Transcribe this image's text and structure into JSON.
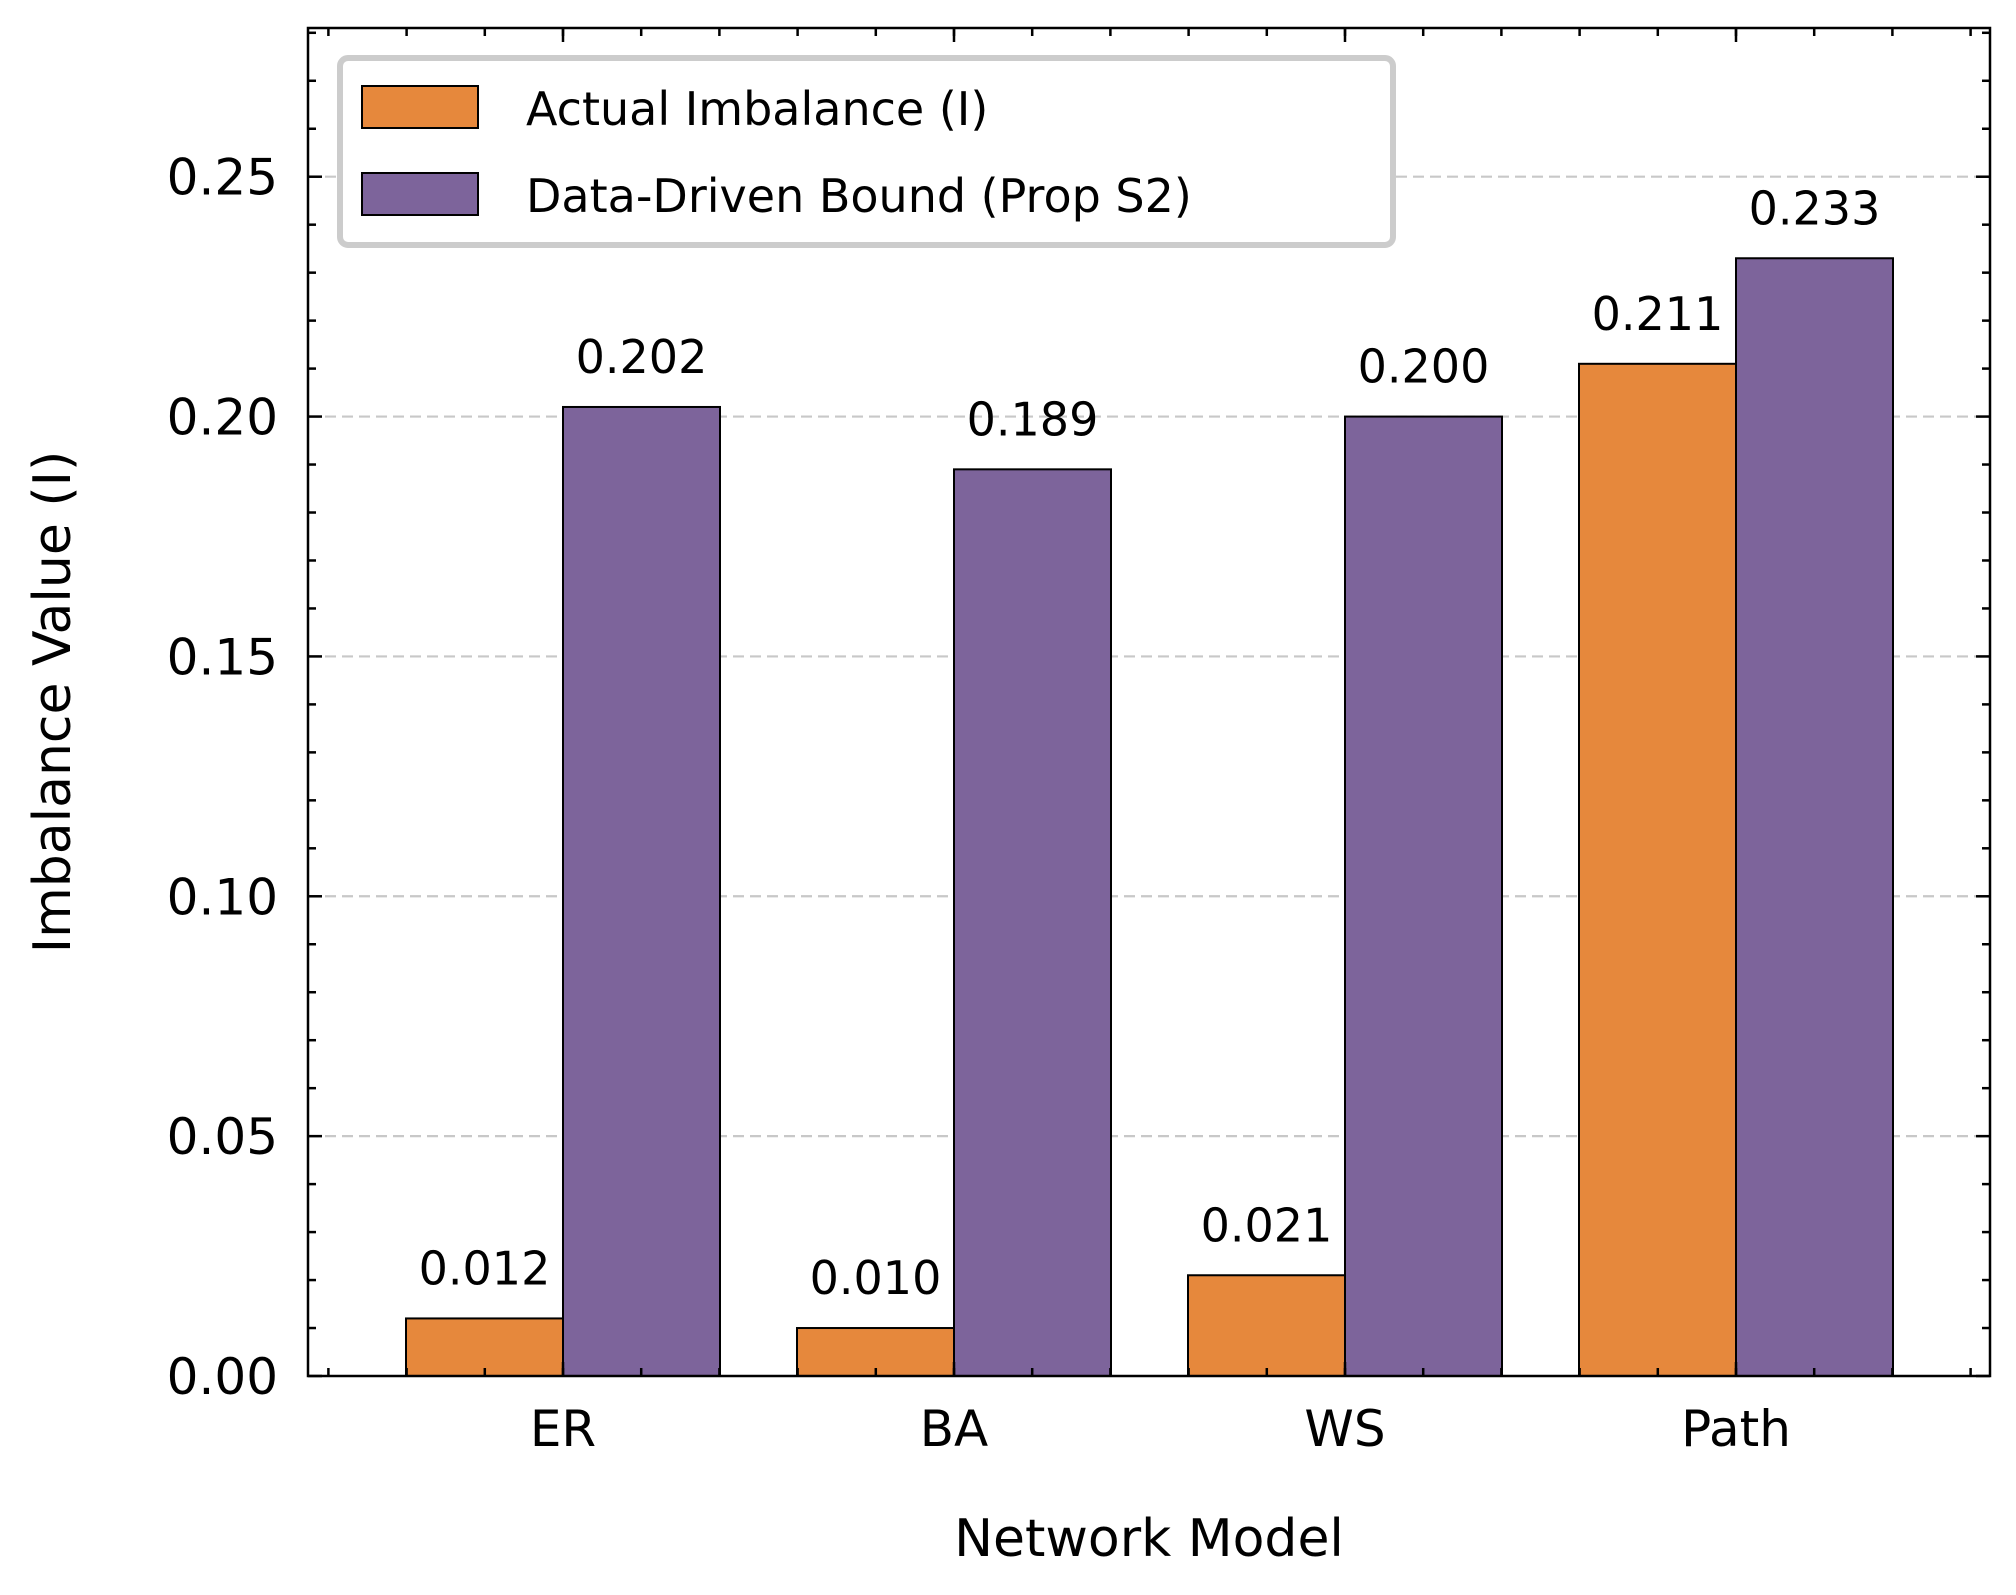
{
  "chart_data": {
    "type": "bar",
    "categories": [
      "ER",
      "BA",
      "WS",
      "Path"
    ],
    "series": [
      {
        "name": "Actual Imbalance (I)",
        "color": "#E6883C",
        "values": [
          0.012,
          0.01,
          0.021,
          0.211
        ],
        "labels": [
          "0.012",
          "0.010",
          "0.021",
          "0.211"
        ]
      },
      {
        "name": "Data-Driven Bound (Prop S2)",
        "color": "#7D649B",
        "values": [
          0.202,
          0.189,
          0.2,
          0.233
        ],
        "labels": [
          "0.202",
          "0.189",
          "0.200",
          "0.233"
        ]
      }
    ],
    "title": "",
    "xlabel": "Network Model",
    "ylabel": "Imbalance Value (I)",
    "ylim": [
      0,
      0.281
    ],
    "yticks": [
      0.0,
      0.05,
      0.1,
      0.15,
      0.2,
      0.25
    ],
    "ytick_labels": [
      "0.00",
      "0.05",
      "0.10",
      "0.15",
      "0.20",
      "0.25"
    ],
    "grid": "y-dashed",
    "legend_position": "top-left"
  }
}
